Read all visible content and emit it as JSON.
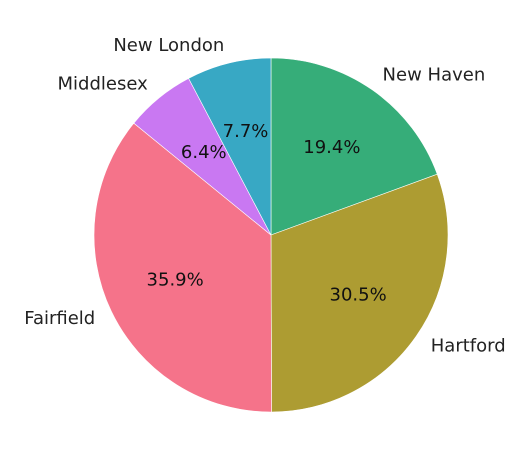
{
  "chart_data": {
    "type": "pie",
    "title": "",
    "start_angle_deg": 90,
    "direction": "clockwise",
    "slices": [
      {
        "label": "New Haven",
        "value": 19.4,
        "pct_label": "19.4%",
        "color": "#36ad79"
      },
      {
        "label": "Hartford",
        "value": 30.5,
        "pct_label": "30.5%",
        "color": "#ad9c32"
      },
      {
        "label": "Fairfield",
        "value": 35.9,
        "pct_label": "35.9%",
        "color": "#f5738a"
      },
      {
        "label": "Middlesex",
        "value": 6.4,
        "pct_label": "6.4%",
        "color": "#c978f2"
      },
      {
        "label": "New London",
        "value": 7.7,
        "pct_label": "7.7%",
        "color": "#38a8c4"
      }
    ]
  }
}
